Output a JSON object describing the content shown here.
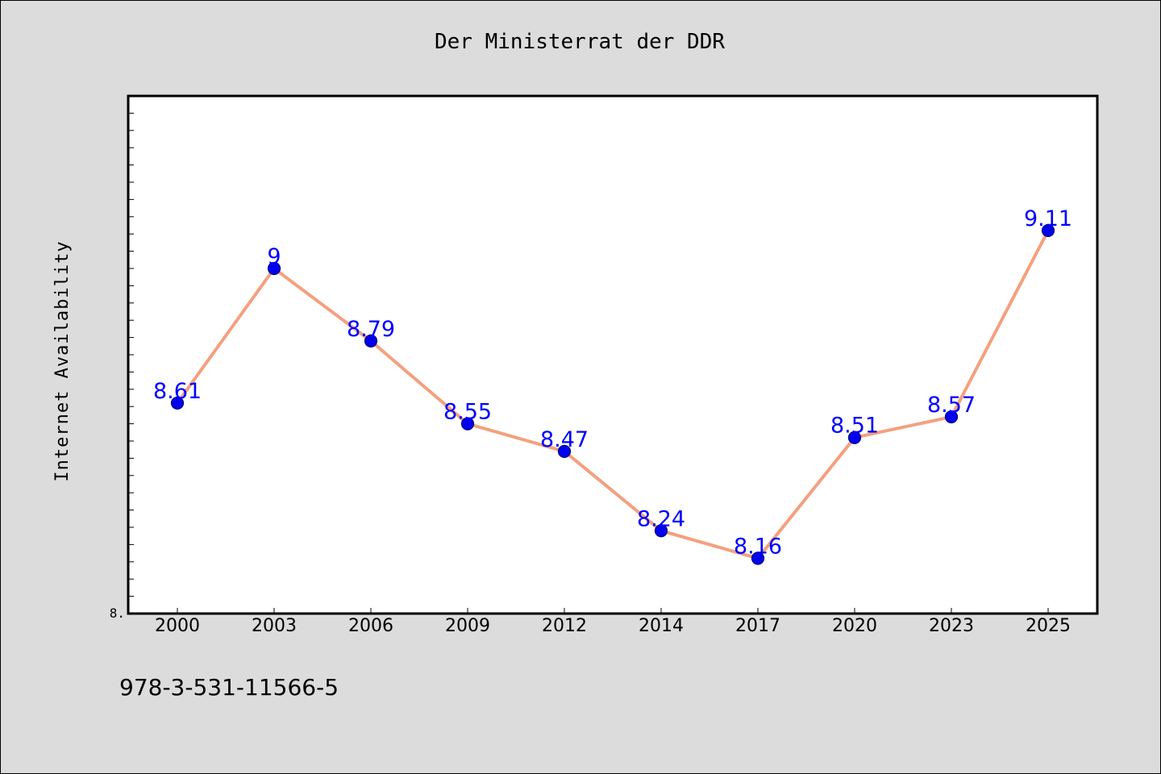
{
  "title": "Der Ministerrat der DDR",
  "footer": "978-3-531-11566-5",
  "colors": {
    "background": "#dcdcdc",
    "plot_background": "#ffffff",
    "line": "#f4a07e",
    "marker": "#0000ee",
    "marker_edge": "#000080",
    "data_label": "#0000ff"
  },
  "chart_data": {
    "type": "line",
    "title": "Der Ministerrat der DDR",
    "xlabel": "",
    "ylabel": "Internet Availability",
    "categories": [
      "2000",
      "2003",
      "2006",
      "2009",
      "2012",
      "2014",
      "2017",
      "2020",
      "2023",
      "2025"
    ],
    "series": [
      {
        "values": [
          8.61,
          9,
          8.79,
          8.55,
          8.47,
          8.24,
          8.16,
          8.51,
          8.57,
          9.11
        ],
        "data_labels": [
          "8.61",
          "9",
          "8.79",
          "8.55",
          "8.47",
          "8.24",
          "8.16",
          "8.51",
          "8.57",
          "9.11"
        ]
      }
    ],
    "ylim": [
      8.0,
      9.5
    ],
    "y_tick_labels": [
      "8."
    ],
    "grid": false,
    "legend": "none"
  }
}
